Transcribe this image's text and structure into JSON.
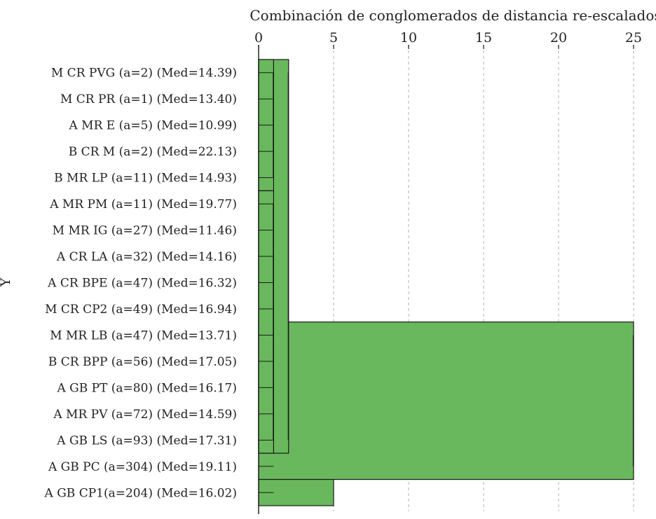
{
  "chart_data": {
    "type": "dendrogram",
    "title": "Combinación de conglomerados de distancia re-escalados",
    "ylabel": "Y",
    "xlim": [
      0,
      25
    ],
    "x_ticks": [
      0,
      5,
      10,
      15,
      20,
      25
    ],
    "grid": "vertical dashed",
    "fill_color": "#69b85d",
    "labels": [
      "M CR PVG (a=2) (Med=14.39)",
      "M CR PR (a=1) (Med=13.40)",
      "A MR E (a=5) (Med=10.99)",
      "B CR M (a=2) (Med=22.13)",
      "B MR LP (a=11) (Med=14.93)",
      "A MR PM (a=11) (Med=19.77)",
      "M MR IG (a=27) (Med=11.46)",
      "A CR LA (a=32) (Med=14.16)",
      "A CR BPE (a=47) (Med=16.32)",
      "M CR CP2 (a=49) (Med=16.94)",
      "M MR LB (a=47) (Med=13.71)",
      "B CR BPP (a=56) (Med=17.05)",
      "A GB PT (a=80) (Med=16.17)",
      "A MR PV (a=72) (Med=14.59)",
      "A GB LS (a=93) (Med=17.31)",
      "A GB PC (a=304) (Med=19.11)",
      "A GB CP1(a=204) (Med=16.02)"
    ],
    "clusters": [
      {
        "rows": [
          0,
          4
        ],
        "distance": 1
      },
      {
        "rows": [
          5,
          14
        ],
        "distance": 1
      },
      {
        "rows": [
          0,
          14
        ],
        "distance": 2
      },
      {
        "rows": [
          10,
          15
        ],
        "distance": 25
      },
      {
        "rows": [
          16,
          16
        ],
        "distance": 5
      }
    ]
  }
}
